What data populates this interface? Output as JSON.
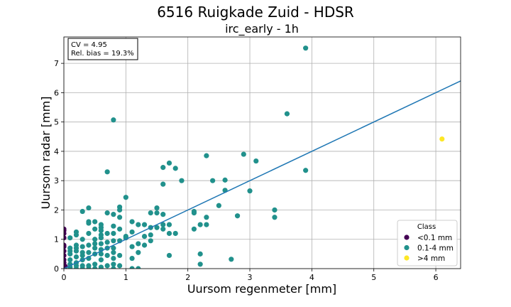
{
  "chart_data": {
    "type": "scatter",
    "title": "6516 Ruigkade Zuid - HDSR",
    "subtitle": "irc_early - 1h",
    "xlabel": "Uursom regenmeter [mm]",
    "ylabel": "Uursom radar [mm]",
    "xlim": [
      0,
      6.4
    ],
    "ylim": [
      0,
      7.9
    ],
    "xticks": [
      0,
      1,
      2,
      3,
      4,
      5,
      6
    ],
    "yticks": [
      0,
      1,
      2,
      3,
      4,
      5,
      6,
      7
    ],
    "grid": true,
    "stats": {
      "cv": "CV = 4.95",
      "bias": "Rel. bias = 19.3%"
    },
    "legend": {
      "title": "Class",
      "position": "lower-right"
    },
    "fit_line": {
      "intercept": 0.0,
      "slope": 1.0
    },
    "series": [
      {
        "name": "<0.1 mm",
        "color": "#440154",
        "points": [
          [
            0,
            0
          ],
          [
            0,
            0.05
          ],
          [
            0,
            0.1
          ],
          [
            0,
            0.2
          ],
          [
            0,
            0.3
          ],
          [
            0,
            0.45
          ],
          [
            0,
            0.6
          ],
          [
            0,
            0.75
          ],
          [
            0,
            0.8
          ],
          [
            0,
            1.05
          ],
          [
            0,
            1.2
          ],
          [
            0,
            1.3
          ],
          [
            0,
            1.35
          ],
          [
            0.01,
            0.02
          ],
          [
            0.02,
            0.08
          ]
        ]
      },
      {
        "name": "0.1-4 mm",
        "color": "#21918c",
        "points": [
          [
            0.1,
            0
          ],
          [
            0.1,
            0.05
          ],
          [
            0.1,
            0.15
          ],
          [
            0.1,
            0.3
          ],
          [
            0.1,
            0.5
          ],
          [
            0.1,
            0.6
          ],
          [
            0.1,
            0.7
          ],
          [
            0.1,
            1.05
          ],
          [
            0.2,
            0
          ],
          [
            0.2,
            0.1
          ],
          [
            0.2,
            0.2
          ],
          [
            0.2,
            0.4
          ],
          [
            0.2,
            0.6
          ],
          [
            0.2,
            0.7
          ],
          [
            0.2,
            0.8
          ],
          [
            0.2,
            1.15
          ],
          [
            0.2,
            1.25
          ],
          [
            0.3,
            0
          ],
          [
            0.3,
            0.1
          ],
          [
            0.3,
            0.3
          ],
          [
            0.3,
            0.45
          ],
          [
            0.3,
            0.55
          ],
          [
            0.3,
            0.75
          ],
          [
            0.3,
            1.0
          ],
          [
            0.3,
            1.95
          ],
          [
            0.4,
            0
          ],
          [
            0.4,
            0.1
          ],
          [
            0.4,
            0.35
          ],
          [
            0.4,
            0.55
          ],
          [
            0.4,
            0.8
          ],
          [
            0.4,
            1.2
          ],
          [
            0.4,
            1.55
          ],
          [
            0.4,
            1.6
          ],
          [
            0.4,
            2.07
          ],
          [
            0.5,
            0
          ],
          [
            0.5,
            0.15
          ],
          [
            0.5,
            0.5
          ],
          [
            0.5,
            0.7
          ],
          [
            0.5,
            0.85
          ],
          [
            0.5,
            1.0
          ],
          [
            0.5,
            1.35
          ],
          [
            0.5,
            1.6
          ],
          [
            0.6,
            0
          ],
          [
            0.6,
            0.05
          ],
          [
            0.6,
            0.3
          ],
          [
            0.6,
            0.5
          ],
          [
            0.6,
            0.65
          ],
          [
            0.6,
            0.85
          ],
          [
            0.6,
            1.05
          ],
          [
            0.6,
            1.15
          ],
          [
            0.6,
            1.3
          ],
          [
            0.6,
            1.4
          ],
          [
            0.6,
            1.5
          ],
          [
            0.7,
            0.1
          ],
          [
            0.7,
            0.45
          ],
          [
            0.7,
            0.7
          ],
          [
            0.7,
            0.9
          ],
          [
            0.7,
            1.2
          ],
          [
            0.7,
            1.9
          ],
          [
            0.7,
            3.3
          ],
          [
            0.8,
            0
          ],
          [
            0.8,
            0.15
          ],
          [
            0.8,
            0.35
          ],
          [
            0.8,
            0.55
          ],
          [
            0.8,
            0.7
          ],
          [
            0.8,
            0.95
          ],
          [
            0.8,
            1.2
          ],
          [
            0.8,
            1.45
          ],
          [
            0.8,
            1.85
          ],
          [
            0.8,
            5.07
          ],
          [
            0.9,
            0.1
          ],
          [
            0.9,
            0.45
          ],
          [
            0.9,
            0.95
          ],
          [
            0.9,
            1.35
          ],
          [
            0.9,
            1.75
          ],
          [
            0.9,
            2.0
          ],
          [
            0.9,
            2.1
          ],
          [
            1.0,
            1.05
          ],
          [
            1.0,
            1.1
          ],
          [
            1.0,
            2.43
          ],
          [
            1.1,
            0
          ],
          [
            1.1,
            0.35
          ],
          [
            1.1,
            0.75
          ],
          [
            1.1,
            1.25
          ],
          [
            1.1,
            1.6
          ],
          [
            1.2,
            0
          ],
          [
            1.2,
            0.55
          ],
          [
            1.2,
            0.85
          ],
          [
            1.2,
            1.5
          ],
          [
            1.3,
            0.8
          ],
          [
            1.3,
            1.1
          ],
          [
            1.3,
            1.5
          ],
          [
            1.4,
            0.95
          ],
          [
            1.4,
            1.15
          ],
          [
            1.4,
            1.4
          ],
          [
            1.4,
            1.9
          ],
          [
            1.5,
            1.4
          ],
          [
            1.5,
            1.9
          ],
          [
            1.5,
            2.07
          ],
          [
            1.6,
            1.35
          ],
          [
            1.6,
            1.5
          ],
          [
            1.6,
            1.85
          ],
          [
            1.6,
            2.88
          ],
          [
            1.6,
            3.45
          ],
          [
            1.7,
            0.45
          ],
          [
            1.7,
            1.2
          ],
          [
            1.7,
            1.5
          ],
          [
            1.7,
            3.6
          ],
          [
            1.8,
            1.2
          ],
          [
            1.8,
            3.42
          ],
          [
            1.9,
            3.0
          ],
          [
            2.1,
            1.35
          ],
          [
            2.1,
            1.9
          ],
          [
            2.1,
            1.95
          ],
          [
            2.2,
            0.15
          ],
          [
            2.2,
            0.5
          ],
          [
            2.2,
            1.5
          ],
          [
            2.3,
            1.5
          ],
          [
            2.3,
            1.75
          ],
          [
            2.3,
            3.85
          ],
          [
            2.4,
            3.0
          ],
          [
            2.5,
            2.15
          ],
          [
            2.6,
            2.67
          ],
          [
            2.6,
            3.02
          ],
          [
            2.7,
            0.32
          ],
          [
            2.8,
            1.8
          ],
          [
            2.9,
            3.9
          ],
          [
            3.0,
            2.65
          ],
          [
            3.1,
            3.67
          ],
          [
            3.4,
            1.75
          ],
          [
            3.4,
            2.0
          ],
          [
            3.6,
            5.28
          ],
          [
            3.9,
            3.35
          ],
          [
            3.9,
            7.52
          ]
        ]
      },
      {
        "name": ">4 mm",
        "color": "#fde725",
        "points": [
          [
            6.1,
            4.42
          ]
        ]
      }
    ]
  }
}
